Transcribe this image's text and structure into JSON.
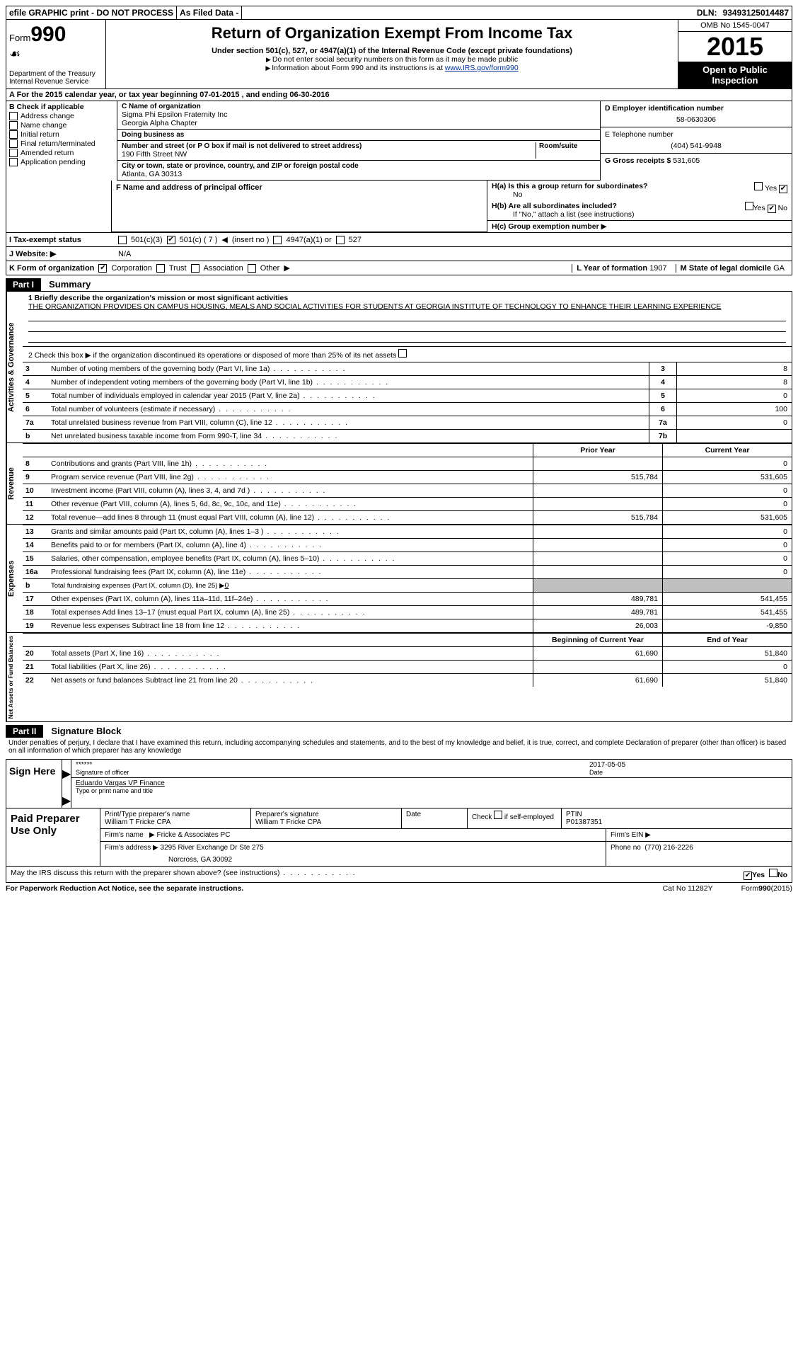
{
  "topbar": {
    "efile": "efile GRAPHIC print - DO NOT PROCESS",
    "asfiled": "As Filed Data -",
    "dln_label": "DLN:",
    "dln": "93493125014487"
  },
  "header": {
    "form_label": "Form",
    "form_number": "990",
    "dept": "Department of the Treasury",
    "irs": "Internal Revenue Service",
    "title": "Return of Organization Exempt From Income Tax",
    "subtitle": "Under section 501(c), 527, or 4947(a)(1) of the Internal Revenue Code (except private foundations)",
    "note1": "Do not enter social security numbers on this form as it may be made public",
    "note2_pre": "Information about Form 990 and its instructions is at ",
    "note2_link": "www.IRS.gov/form990",
    "omb": "OMB No 1545-0047",
    "year": "2015",
    "open": "Open to Public Inspection"
  },
  "rowA": {
    "text_pre": "A  For the 2015 calendar year, or tax year beginning ",
    "begin": "07-01-2015",
    "mid": " , and ending ",
    "end": "06-30-2016"
  },
  "colB": {
    "label": "B  Check if applicable",
    "options": [
      "Address change",
      "Name change",
      "Initial return",
      "Final return/terminated",
      "Amended return",
      "Application pending"
    ]
  },
  "colC": {
    "name_label": "C Name of organization",
    "name1": "Sigma Phi Epsilon Fraternity Inc",
    "name2": "Georgia Alpha Chapter",
    "dba_label": "Doing business as",
    "dba": "",
    "street_label": "Number and street (or P O box if mail is not delivered to street address)",
    "room_label": "Room/suite",
    "street": "190 Fifth Street NW",
    "city_label": "City or town, state or province, country, and ZIP or foreign postal code",
    "city": "Atlanta, GA  30313",
    "f_label": "F  Name and address of principal officer",
    "f_value": ""
  },
  "colD": {
    "ein_label": "D Employer identification number",
    "ein": "58-0630306",
    "tel_label": "E Telephone number",
    "tel": "(404) 541-9948",
    "gross_label": "G Gross receipts $",
    "gross": "531,605"
  },
  "colH": {
    "ha_label": "H(a)  Is this a group return for subordinates?",
    "ha_yes": "Yes",
    "ha_no": "No",
    "hb_label": "H(b)  Are all subordinates included?",
    "hb_note": "If \"No,\" attach a list  (see instructions)",
    "hc_label": "H(c)  Group exemption number"
  },
  "rowI": {
    "label": "I  Tax-exempt status",
    "opt1": "501(c)(3)",
    "opt2": "501(c) ( 7 )",
    "opt2_note": "(insert no )",
    "opt3": "4947(a)(1) or",
    "opt4": "527"
  },
  "rowJ": {
    "label": "J  Website:",
    "value": "N/A"
  },
  "rowK": {
    "label": "K Form of organization",
    "opts": [
      "Corporation",
      "Trust",
      "Association",
      "Other"
    ],
    "l_label": "L Year of formation",
    "l_value": "1907",
    "m_label": "M State of legal domicile",
    "m_value": "GA"
  },
  "partI": {
    "header": "Part I",
    "title": "Summary",
    "q1_label": "1 Briefly describe the organization's mission or most significant activities",
    "q1_text": "THE ORGANIZATION PROVIDES ON CAMPUS HOUSING, MEALS AND SOCIAL ACTIVITIES FOR STUDENTS AT GEORGIA INSTITUTE OF TECHNOLOGY TO ENHANCE THEIR LEARNING EXPERIENCE",
    "q2": "2  Check this box ▶ if the organization discontinued its operations or disposed of more than 25% of its net assets",
    "governance_rows": [
      {
        "n": "3",
        "t": "Number of voting members of the governing body (Part VI, line 1a)",
        "box": "3",
        "v": "8"
      },
      {
        "n": "4",
        "t": "Number of independent voting members of the governing body (Part VI, line 1b)",
        "box": "4",
        "v": "8"
      },
      {
        "n": "5",
        "t": "Total number of individuals employed in calendar year 2015 (Part V, line 2a)",
        "box": "5",
        "v": "0"
      },
      {
        "n": "6",
        "t": "Total number of volunteers (estimate if necessary)",
        "box": "6",
        "v": "100"
      },
      {
        "n": "7a",
        "t": "Total unrelated business revenue from Part VIII, column (C), line 12",
        "box": "7a",
        "v": "0"
      },
      {
        "n": "b",
        "t": "Net unrelated business taxable income from Form 990-T, line 34",
        "box": "7b",
        "v": ""
      }
    ],
    "col_hdr1": "Prior Year",
    "col_hdr2": "Current Year",
    "revenue_rows": [
      {
        "n": "8",
        "t": "Contributions and grants (Part VIII, line 1h)",
        "c1": "",
        "c2": "0"
      },
      {
        "n": "9",
        "t": "Program service revenue (Part VIII, line 2g)",
        "c1": "515,784",
        "c2": "531,605"
      },
      {
        "n": "10",
        "t": "Investment income (Part VIII, column (A), lines 3, 4, and 7d )",
        "c1": "",
        "c2": "0"
      },
      {
        "n": "11",
        "t": "Other revenue (Part VIII, column (A), lines 5, 6d, 8c, 9c, 10c, and 11e)",
        "c1": "",
        "c2": "0"
      },
      {
        "n": "12",
        "t": "Total revenue—add lines 8 through 11 (must equal Part VIII, column (A), line 12)",
        "c1": "515,784",
        "c2": "531,605"
      }
    ],
    "expense_rows": [
      {
        "n": "13",
        "t": "Grants and similar amounts paid (Part IX, column (A), lines 1–3 )",
        "c1": "",
        "c2": "0"
      },
      {
        "n": "14",
        "t": "Benefits paid to or for members (Part IX, column (A), line 4)",
        "c1": "",
        "c2": "0"
      },
      {
        "n": "15",
        "t": "Salaries, other compensation, employee benefits (Part IX, column (A), lines 5–10)",
        "c1": "",
        "c2": "0"
      },
      {
        "n": "16a",
        "t": "Professional fundraising fees (Part IX, column (A), line 11e)",
        "c1": "",
        "c2": "0"
      },
      {
        "n": "b",
        "t": "Total fundraising expenses (Part IX, column (D), line 25) ▶",
        "c1": "grey",
        "c2": "grey",
        "inline": "0"
      },
      {
        "n": "17",
        "t": "Other expenses (Part IX, column (A), lines 11a–11d, 11f–24e)",
        "c1": "489,781",
        "c2": "541,455"
      },
      {
        "n": "18",
        "t": "Total expenses  Add lines 13–17 (must equal Part IX, column (A), line 25)",
        "c1": "489,781",
        "c2": "541,455"
      },
      {
        "n": "19",
        "t": "Revenue less expenses  Subtract line 18 from line 12",
        "c1": "26,003",
        "c2": "-9,850"
      }
    ],
    "net_hdr1": "Beginning of Current Year",
    "net_hdr2": "End of Year",
    "net_rows": [
      {
        "n": "20",
        "t": "Total assets (Part X, line 16)",
        "c1": "61,690",
        "c2": "51,840"
      },
      {
        "n": "21",
        "t": "Total liabilities (Part X, line 26)",
        "c1": "",
        "c2": "0"
      },
      {
        "n": "22",
        "t": "Net assets or fund balances  Subtract line 21 from line 20",
        "c1": "61,690",
        "c2": "51,840"
      }
    ],
    "vtabs": {
      "gov": "Activities & Governance",
      "rev": "Revenue",
      "exp": "Expenses",
      "net": "Net Assets or Fund Balances"
    }
  },
  "partII": {
    "header": "Part II",
    "title": "Signature Block",
    "declaration": "Under penalties of perjury, I declare that I have examined this return, including accompanying schedules and statements, and to the best of my knowledge and belief, it is true, correct, and complete  Declaration of preparer (other than officer) is based on all information of which preparer has any knowledge",
    "sign_here": "Sign Here",
    "sig_stars": "******",
    "sig_date": "2017-05-05",
    "sig_officer_lbl": "Signature of officer",
    "sig_date_lbl": "Date",
    "officer_name": "Eduardo Vargas VP Finance",
    "officer_name_lbl": "Type or print name and title",
    "paid": "Paid Preparer Use Only",
    "prep_name_lbl": "Print/Type preparer's name",
    "prep_name": "William T Fricke CPA",
    "prep_sig_lbl": "Preparer's signature",
    "prep_sig": "William T Fricke CPA",
    "prep_date_lbl": "Date",
    "check_lbl": "Check",
    "self_emp": "if self-employed",
    "ptin_lbl": "PTIN",
    "ptin": "P01387351",
    "firm_name_lbl": "Firm's name",
    "firm_name": "Fricke & Associates PC",
    "firm_ein_lbl": "Firm's EIN",
    "firm_addr_lbl": "Firm's address",
    "firm_addr1": "3295 River Exchange Dr Ste 275",
    "firm_addr2": "Norcross, GA  30092",
    "phone_lbl": "Phone no",
    "phone": "(770) 216-2226",
    "discuss": "May the IRS discuss this return with the preparer shown above? (see instructions)",
    "yes": "Yes",
    "no": "No",
    "paperwork": "For Paperwork Reduction Act Notice, see the separate instructions.",
    "catno": "Cat No  11282Y",
    "formfoot": "Form 990 (2015)"
  }
}
